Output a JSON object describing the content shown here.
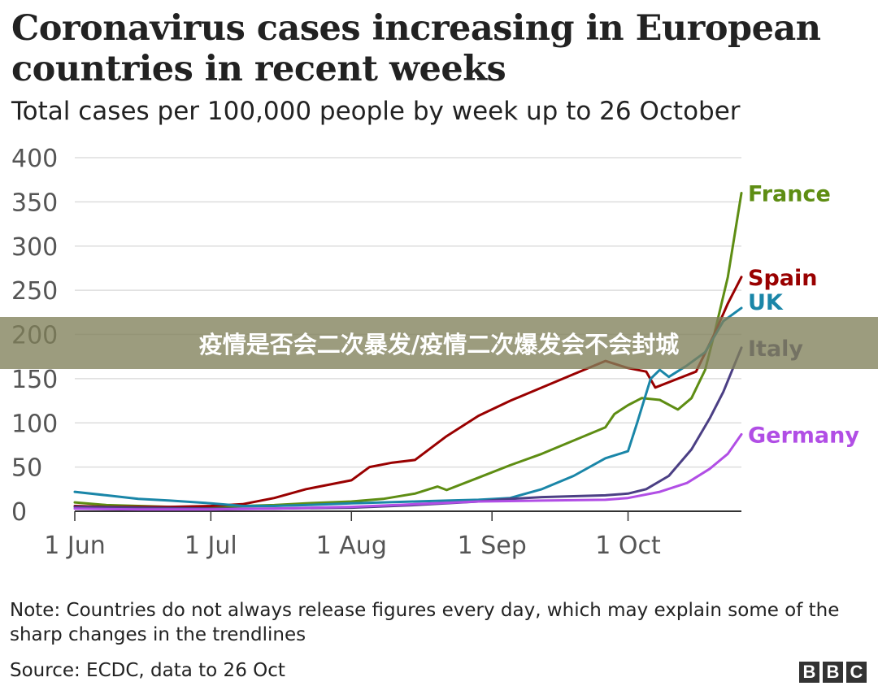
{
  "title": "Coronavirus cases increasing in European countries in recent weeks",
  "subtitle": "Total cases per 100,000 people by week up to 26 October",
  "note": "Note: Countries do not always release figures every day, which may explain some of the sharp changes in the trendlines",
  "source": "Source: ECDC, data to 26 Oct",
  "logo": [
    "B",
    "B",
    "C"
  ],
  "banner": "疫情是否会二次暴发/疫情二次爆发会不会封城",
  "colors": {
    "France": "#5e8d13",
    "Spain": "#990000",
    "UK": "#1a86a8",
    "Italy": "#4b3f84",
    "Germany": "#b14ee5",
    "grid": "#dddddd",
    "axis": "#333333"
  },
  "chart_data": {
    "type": "line",
    "ylim": [
      0,
      400
    ],
    "yticks": [
      0,
      50,
      100,
      150,
      200,
      250,
      300,
      350,
      400
    ],
    "xlim": [
      "2020-06-01",
      "2020-10-26"
    ],
    "xticks": [
      {
        "date": "2020-06-01",
        "label": "1 Jun"
      },
      {
        "date": "2020-07-01",
        "label": "1 Jul"
      },
      {
        "date": "2020-08-01",
        "label": "1 Aug"
      },
      {
        "date": "2020-09-01",
        "label": "1 Sep"
      },
      {
        "date": "2020-10-01",
        "label": "1 Oct"
      }
    ],
    "grid": true,
    "series": [
      {
        "name": "France",
        "points": [
          [
            "2020-06-01",
            10
          ],
          [
            "2020-06-08",
            7
          ],
          [
            "2020-06-15",
            6
          ],
          [
            "2020-06-22",
            5
          ],
          [
            "2020-07-01",
            5
          ],
          [
            "2020-07-08",
            6
          ],
          [
            "2020-07-15",
            7
          ],
          [
            "2020-07-22",
            9
          ],
          [
            "2020-08-01",
            11
          ],
          [
            "2020-08-08",
            14
          ],
          [
            "2020-08-15",
            20
          ],
          [
            "2020-08-20",
            28
          ],
          [
            "2020-08-22",
            24
          ],
          [
            "2020-08-29",
            38
          ],
          [
            "2020-09-05",
            52
          ],
          [
            "2020-09-12",
            65
          ],
          [
            "2020-09-19",
            80
          ],
          [
            "2020-09-26",
            95
          ],
          [
            "2020-09-28",
            110
          ],
          [
            "2020-10-01",
            120
          ],
          [
            "2020-10-04",
            128
          ],
          [
            "2020-10-08",
            126
          ],
          [
            "2020-10-12",
            115
          ],
          [
            "2020-10-15",
            128
          ],
          [
            "2020-10-18",
            160
          ],
          [
            "2020-10-20",
            200
          ],
          [
            "2020-10-23",
            265
          ],
          [
            "2020-10-26",
            360
          ]
        ]
      },
      {
        "name": "Spain",
        "points": [
          [
            "2020-06-01",
            6
          ],
          [
            "2020-06-08",
            5
          ],
          [
            "2020-06-15",
            5
          ],
          [
            "2020-06-22",
            5
          ],
          [
            "2020-07-01",
            6
          ],
          [
            "2020-07-08",
            8
          ],
          [
            "2020-07-15",
            15
          ],
          [
            "2020-07-22",
            25
          ],
          [
            "2020-08-01",
            35
          ],
          [
            "2020-08-05",
            50
          ],
          [
            "2020-08-10",
            55
          ],
          [
            "2020-08-15",
            58
          ],
          [
            "2020-08-22",
            85
          ],
          [
            "2020-08-29",
            108
          ],
          [
            "2020-09-05",
            125
          ],
          [
            "2020-09-12",
            140
          ],
          [
            "2020-09-19",
            155
          ],
          [
            "2020-09-26",
            170
          ],
          [
            "2020-10-01",
            162
          ],
          [
            "2020-10-05",
            158
          ],
          [
            "2020-10-07",
            140
          ],
          [
            "2020-10-12",
            150
          ],
          [
            "2020-10-16",
            158
          ],
          [
            "2020-10-20",
            200
          ],
          [
            "2020-10-23",
            235
          ],
          [
            "2020-10-26",
            265
          ]
        ]
      },
      {
        "name": "UK",
        "points": [
          [
            "2020-06-01",
            22
          ],
          [
            "2020-06-08",
            18
          ],
          [
            "2020-06-15",
            14
          ],
          [
            "2020-06-22",
            12
          ],
          [
            "2020-07-01",
            9
          ],
          [
            "2020-07-08",
            6
          ],
          [
            "2020-07-15",
            6
          ],
          [
            "2020-07-22",
            7
          ],
          [
            "2020-08-01",
            9
          ],
          [
            "2020-08-08",
            10
          ],
          [
            "2020-08-15",
            11
          ],
          [
            "2020-08-22",
            12
          ],
          [
            "2020-08-29",
            13
          ],
          [
            "2020-09-05",
            15
          ],
          [
            "2020-09-12",
            25
          ],
          [
            "2020-09-19",
            40
          ],
          [
            "2020-09-26",
            60
          ],
          [
            "2020-10-01",
            68
          ],
          [
            "2020-10-03",
            100
          ],
          [
            "2020-10-06",
            150
          ],
          [
            "2020-10-08",
            160
          ],
          [
            "2020-10-10",
            152
          ],
          [
            "2020-10-14",
            165
          ],
          [
            "2020-10-18",
            180
          ],
          [
            "2020-10-22",
            215
          ],
          [
            "2020-10-26",
            230
          ]
        ]
      },
      {
        "name": "Italy",
        "points": [
          [
            "2020-06-01",
            5
          ],
          [
            "2020-06-15",
            4
          ],
          [
            "2020-07-01",
            3
          ],
          [
            "2020-07-15",
            3
          ],
          [
            "2020-08-01",
            4
          ],
          [
            "2020-08-15",
            7
          ],
          [
            "2020-08-29",
            11
          ],
          [
            "2020-09-05",
            14
          ],
          [
            "2020-09-12",
            16
          ],
          [
            "2020-09-19",
            17
          ],
          [
            "2020-09-26",
            18
          ],
          [
            "2020-10-01",
            20
          ],
          [
            "2020-10-05",
            25
          ],
          [
            "2020-10-10",
            40
          ],
          [
            "2020-10-15",
            70
          ],
          [
            "2020-10-19",
            105
          ],
          [
            "2020-10-22",
            135
          ],
          [
            "2020-10-26",
            185
          ]
        ]
      },
      {
        "name": "Germany",
        "points": [
          [
            "2020-06-01",
            3
          ],
          [
            "2020-06-15",
            2
          ],
          [
            "2020-07-01",
            2
          ],
          [
            "2020-07-15",
            3
          ],
          [
            "2020-08-01",
            5
          ],
          [
            "2020-08-15",
            8
          ],
          [
            "2020-08-29",
            11
          ],
          [
            "2020-09-12",
            12
          ],
          [
            "2020-09-26",
            13
          ],
          [
            "2020-10-01",
            15
          ],
          [
            "2020-10-08",
            22
          ],
          [
            "2020-10-14",
            32
          ],
          [
            "2020-10-19",
            48
          ],
          [
            "2020-10-23",
            65
          ],
          [
            "2020-10-26",
            87
          ]
        ]
      }
    ]
  }
}
